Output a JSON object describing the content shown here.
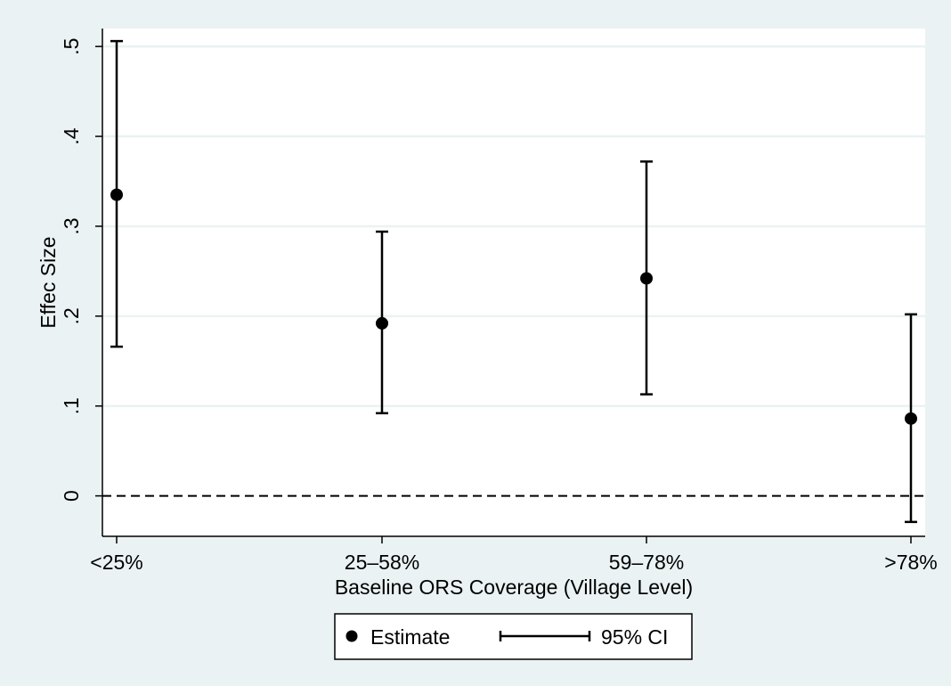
{
  "chart_data": {
    "type": "scatter",
    "title": "",
    "xlabel": "Baseline ORS Coverage (Village Level)",
    "ylabel": "Effec Size",
    "categories": [
      "<25%",
      "25–58%",
      "59–78%",
      ">78%"
    ],
    "ylim": [
      -0.045,
      0.52
    ],
    "yticks": [
      0,
      0.1,
      0.2,
      0.3,
      0.4,
      0.5
    ],
    "ytick_labels": [
      "0",
      ".1",
      ".2",
      ".3",
      ".4",
      ".5"
    ],
    "grid": true,
    "reference_line": {
      "y": 0,
      "style": "dashed"
    },
    "legend_position": "bottom",
    "series": [
      {
        "name": "Estimate",
        "values": [
          0.335,
          0.192,
          0.242,
          0.086
        ]
      },
      {
        "name": "95% CI",
        "lower": [
          0.166,
          0.092,
          0.113,
          -0.029
        ],
        "upper": [
          0.506,
          0.294,
          0.372,
          0.202
        ]
      }
    ]
  },
  "colors": {
    "outer_background": "#eaf2f3",
    "plot_background": "#ffffff",
    "gridline": "#eaf2f3",
    "marker": "#000000"
  }
}
